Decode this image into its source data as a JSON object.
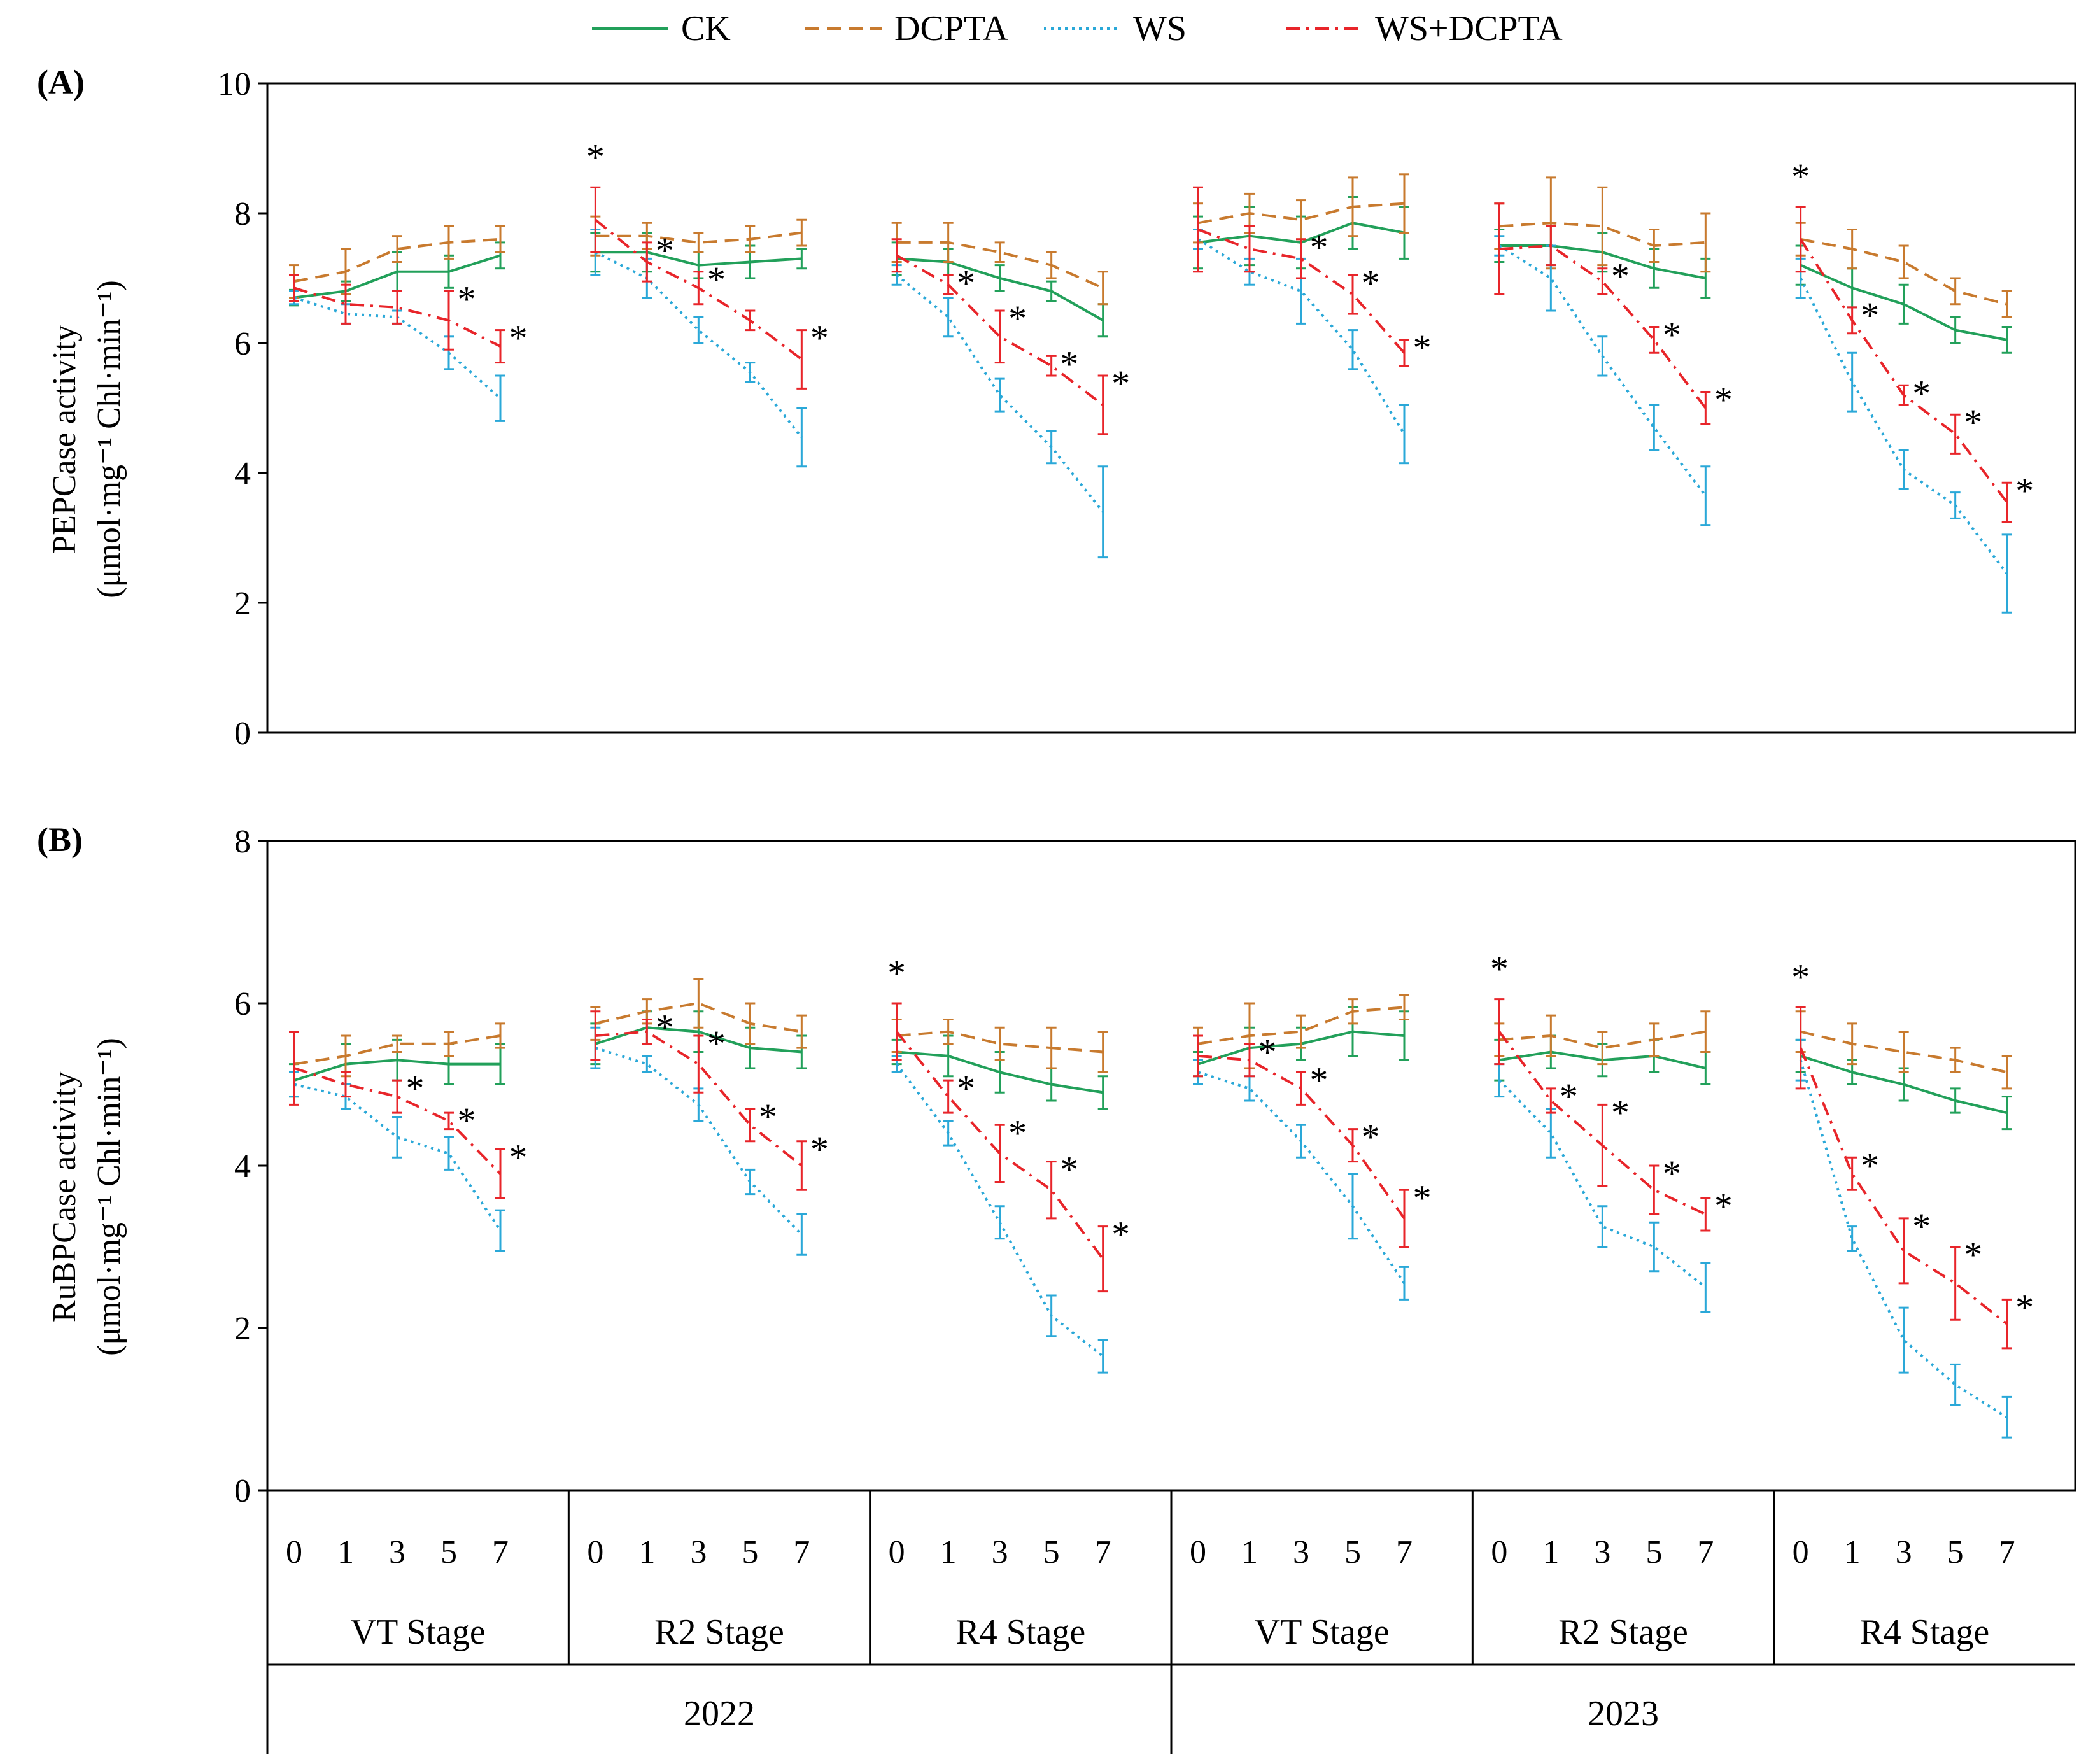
{
  "legend": [
    {
      "name": "CK",
      "color": "#22a05a",
      "dash": "solid"
    },
    {
      "name": "DCPTA",
      "color": "#c87a2e",
      "dash": "dashed"
    },
    {
      "name": "WS",
      "color": "#2aa8d8",
      "dash": "dotted"
    },
    {
      "name": "WS+DCPTA",
      "color": "#e8252a",
      "dash": "dashdot"
    }
  ],
  "x_axis": {
    "days": [
      "0",
      "1",
      "3",
      "5",
      "7"
    ],
    "stages": [
      "VT Stage",
      "R2 Stage",
      "R4 Stage",
      "VT Stage",
      "R2 Stage",
      "R4 Stage"
    ],
    "years": [
      "2022",
      "2023"
    ]
  },
  "chart_data": [
    {
      "type": "line",
      "panel": "(A)",
      "ylabel": "PEPCase activity",
      "yunit": "(μmol·mg⁻¹ Chl·min⁻¹)",
      "ylim": [
        0,
        10
      ],
      "yticks": [
        0,
        2,
        4,
        6,
        8,
        10
      ],
      "groups": [
        {
          "stage": "VT Stage",
          "year": "2022",
          "CK": [
            6.7,
            6.8,
            7.1,
            7.1,
            7.35
          ],
          "CK_err": [
            0.12,
            0.15,
            0.3,
            0.25,
            0.2
          ],
          "DCPTA": [
            6.95,
            7.1,
            7.45,
            7.55,
            7.6
          ],
          "DCPTA_err": [
            0.25,
            0.35,
            0.2,
            0.25,
            0.2
          ],
          "WS": [
            6.7,
            6.45,
            6.4,
            5.85,
            5.15
          ],
          "WS_err": [
            0.1,
            0.15,
            0.1,
            0.25,
            0.35
          ],
          "WS+DCPTA": [
            6.85,
            6.6,
            6.55,
            6.35,
            5.95
          ],
          "WS+DCPTA_err": [
            0.2,
            0.3,
            0.25,
            0.45,
            0.25
          ],
          "sig": [
            "",
            "",
            "",
            "*",
            "*"
          ]
        },
        {
          "stage": "R2 Stage",
          "year": "2022",
          "CK": [
            7.4,
            7.4,
            7.2,
            7.25,
            7.3
          ],
          "CK_err": [
            0.3,
            0.3,
            0.2,
            0.25,
            0.15
          ],
          "DCPTA": [
            7.65,
            7.65,
            7.55,
            7.6,
            7.7
          ],
          "DCPTA_err": [
            0.3,
            0.2,
            0.15,
            0.2,
            0.2
          ],
          "WS": [
            7.4,
            7.0,
            6.2,
            5.55,
            4.55
          ],
          "WS_err": [
            0.35,
            0.3,
            0.2,
            0.15,
            0.45
          ],
          "WS+DCPTA": [
            7.9,
            7.25,
            6.85,
            6.35,
            5.75
          ],
          "WS+DCPTA_err": [
            0.5,
            0.3,
            0.25,
            0.15,
            0.45
          ],
          "sig": [
            "*",
            "*",
            "*",
            "",
            "*"
          ]
        },
        {
          "stage": "R4 Stage",
          "year": "2022",
          "CK": [
            7.3,
            7.25,
            7.0,
            6.8,
            6.35
          ],
          "CK_err": [
            0.25,
            0.2,
            0.2,
            0.15,
            0.25
          ],
          "DCPTA": [
            7.55,
            7.55,
            7.4,
            7.2,
            6.85
          ],
          "DCPTA_err": [
            0.3,
            0.3,
            0.15,
            0.2,
            0.25
          ],
          "WS": [
            7.05,
            6.4,
            5.2,
            4.4,
            3.4
          ],
          "WS_err": [
            0.15,
            0.3,
            0.25,
            0.25,
            0.7
          ],
          "WS+DCPTA": [
            7.35,
            6.9,
            6.1,
            5.65,
            5.05
          ],
          "WS+DCPTA_err": [
            0.25,
            0.15,
            0.4,
            0.15,
            0.45
          ],
          "sig": [
            "",
            "*",
            "*",
            "*",
            "*"
          ]
        },
        {
          "stage": "VT Stage",
          "year": "2023",
          "CK": [
            7.55,
            7.65,
            7.55,
            7.85,
            7.7
          ],
          "CK_err": [
            0.4,
            0.45,
            0.4,
            0.4,
            0.4
          ],
          "DCPTA": [
            7.85,
            8.0,
            7.9,
            8.1,
            8.15
          ],
          "DCPTA_err": [
            0.3,
            0.3,
            0.3,
            0.45,
            0.45
          ],
          "WS": [
            7.6,
            7.1,
            6.8,
            5.9,
            4.6
          ],
          "WS_err": [
            0.15,
            0.2,
            0.5,
            0.3,
            0.45
          ],
          "WS+DCPTA": [
            7.75,
            7.45,
            7.3,
            6.75,
            5.85
          ],
          "WS+DCPTA_err": [
            0.65,
            0.35,
            0.3,
            0.3,
            0.2
          ],
          "sig": [
            "",
            "",
            "*",
            "*",
            "*"
          ]
        },
        {
          "stage": "R2 Stage",
          "year": "2023",
          "CK": [
            7.5,
            7.5,
            7.4,
            7.15,
            7.0
          ],
          "CK_err": [
            0.25,
            0.3,
            0.3,
            0.3,
            0.3
          ],
          "DCPTA": [
            7.8,
            7.85,
            7.8,
            7.5,
            7.55
          ],
          "DCPTA_err": [
            0.35,
            0.7,
            0.6,
            0.25,
            0.45
          ],
          "WS": [
            7.5,
            7.0,
            5.8,
            4.7,
            3.65
          ],
          "WS_err": [
            0.15,
            0.5,
            0.3,
            0.35,
            0.45
          ],
          "WS+DCPTA": [
            7.45,
            7.5,
            6.95,
            6.05,
            5.0
          ],
          "WS+DCPTA_err": [
            0.7,
            0.3,
            0.2,
            0.2,
            0.25
          ],
          "sig": [
            "",
            "",
            "*",
            "*",
            "*"
          ]
        },
        {
          "stage": "R4 Stage",
          "year": "2023",
          "CK": [
            7.2,
            6.85,
            6.6,
            6.2,
            6.05
          ],
          "CK_err": [
            0.3,
            0.3,
            0.3,
            0.2,
            0.2
          ],
          "DCPTA": [
            7.6,
            7.45,
            7.25,
            6.8,
            6.6
          ],
          "DCPTA_err": [
            0.25,
            0.3,
            0.25,
            0.2,
            0.2
          ],
          "WS": [
            7.0,
            5.4,
            4.05,
            3.5,
            2.45
          ],
          "WS_err": [
            0.3,
            0.45,
            0.3,
            0.2,
            0.6
          ],
          "WS+DCPTA": [
            7.6,
            6.35,
            5.2,
            4.6,
            3.55
          ],
          "WS+DCPTA_err": [
            0.5,
            0.2,
            0.15,
            0.3,
            0.3
          ],
          "sig": [
            "*",
            "*",
            "*",
            "*",
            "*"
          ]
        }
      ]
    },
    {
      "type": "line",
      "panel": "(B)",
      "ylabel": "RuBPCase activity",
      "yunit": "(μmol·mg⁻¹ Chl·min⁻¹)",
      "ylim": [
        0,
        8
      ],
      "yticks": [
        0,
        2,
        4,
        6,
        8
      ],
      "groups": [
        {
          "stage": "VT Stage",
          "year": "2022",
          "CK": [
            5.05,
            5.25,
            5.3,
            5.25,
            5.25
          ],
          "CK_err": [
            0.2,
            0.25,
            0.25,
            0.25,
            0.25
          ],
          "DCPTA": [
            5.25,
            5.35,
            5.5,
            5.5,
            5.6
          ],
          "DCPTA_err": [
            0.4,
            0.25,
            0.1,
            0.15,
            0.15
          ],
          "WS": [
            5.0,
            4.85,
            4.35,
            4.15,
            3.2
          ],
          "WS_err": [
            0.15,
            0.15,
            0.25,
            0.2,
            0.25
          ],
          "WS+DCPTA": [
            5.2,
            5.0,
            4.85,
            4.55,
            3.9
          ],
          "WS+DCPTA_err": [
            0.45,
            0.15,
            0.2,
            0.1,
            0.3
          ],
          "sig": [
            "",
            "",
            "*",
            "*",
            "*"
          ]
        },
        {
          "stage": "R2 Stage",
          "year": "2022",
          "CK": [
            5.5,
            5.7,
            5.65,
            5.45,
            5.4
          ],
          "CK_err": [
            0.25,
            0.2,
            0.25,
            0.25,
            0.2
          ],
          "DCPTA": [
            5.75,
            5.9,
            6.0,
            5.75,
            5.65
          ],
          "DCPTA_err": [
            0.2,
            0.15,
            0.3,
            0.25,
            0.2
          ],
          "WS": [
            5.45,
            5.25,
            4.75,
            3.8,
            3.15
          ],
          "WS_err": [
            0.25,
            0.1,
            0.2,
            0.15,
            0.25
          ],
          "WS+DCPTA": [
            5.6,
            5.65,
            5.25,
            4.5,
            4.0
          ],
          "WS+DCPTA_err": [
            0.3,
            0.15,
            0.35,
            0.2,
            0.3
          ],
          "sig": [
            "",
            "*",
            "*",
            "*",
            "*"
          ]
        },
        {
          "stage": "R4 Stage",
          "year": "2022",
          "CK": [
            5.4,
            5.35,
            5.15,
            5.0,
            4.9
          ],
          "CK_err": [
            0.15,
            0.25,
            0.25,
            0.2,
            0.2
          ],
          "DCPTA": [
            5.6,
            5.65,
            5.5,
            5.45,
            5.4
          ],
          "DCPTA_err": [
            0.2,
            0.15,
            0.2,
            0.25,
            0.25
          ],
          "WS": [
            5.25,
            4.4,
            3.3,
            2.15,
            1.65
          ],
          "WS_err": [
            0.1,
            0.15,
            0.2,
            0.25,
            0.2
          ],
          "WS+DCPTA": [
            5.65,
            4.85,
            4.15,
            3.7,
            2.85
          ],
          "WS+DCPTA_err": [
            0.35,
            0.2,
            0.35,
            0.35,
            0.4
          ],
          "sig": [
            "*",
            "*",
            "*",
            "*",
            "*"
          ]
        },
        {
          "stage": "VT Stage",
          "year": "2023",
          "CK": [
            5.25,
            5.45,
            5.5,
            5.65,
            5.6
          ],
          "CK_err": [
            0.15,
            0.25,
            0.2,
            0.3,
            0.3
          ],
          "DCPTA": [
            5.5,
            5.6,
            5.65,
            5.9,
            5.95
          ],
          "DCPTA_err": [
            0.2,
            0.4,
            0.2,
            0.15,
            0.15
          ],
          "WS": [
            5.15,
            4.95,
            4.3,
            3.5,
            2.55
          ],
          "WS_err": [
            0.15,
            0.15,
            0.2,
            0.4,
            0.2
          ],
          "WS+DCPTA": [
            5.35,
            5.3,
            4.95,
            4.25,
            3.35
          ],
          "WS+DCPTA_err": [
            0.25,
            0.2,
            0.2,
            0.2,
            0.35
          ],
          "sig": [
            "",
            "*",
            "*",
            "*",
            "*"
          ]
        },
        {
          "stage": "R2 Stage",
          "year": "2023",
          "CK": [
            5.3,
            5.4,
            5.3,
            5.35,
            5.2
          ],
          "CK_err": [
            0.25,
            0.2,
            0.2,
            0.2,
            0.2
          ],
          "DCPTA": [
            5.55,
            5.6,
            5.45,
            5.55,
            5.65
          ],
          "DCPTA_err": [
            0.2,
            0.25,
            0.2,
            0.2,
            0.25
          ],
          "WS": [
            5.05,
            4.4,
            3.25,
            3.0,
            2.5
          ],
          "WS_err": [
            0.2,
            0.3,
            0.25,
            0.3,
            0.3
          ],
          "WS+DCPTA": [
            5.65,
            4.8,
            4.25,
            3.7,
            3.4
          ],
          "WS+DCPTA_err": [
            0.4,
            0.15,
            0.5,
            0.3,
            0.2
          ],
          "sig": [
            "*",
            "*",
            "*",
            "*",
            "*"
          ]
        },
        {
          "stage": "R4 Stage",
          "year": "2023",
          "CK": [
            5.35,
            5.15,
            5.0,
            4.8,
            4.65
          ],
          "CK_err": [
            0.2,
            0.15,
            0.2,
            0.15,
            0.2
          ],
          "DCPTA": [
            5.65,
            5.5,
            5.4,
            5.3,
            5.15
          ],
          "DCPTA_err": [
            0.25,
            0.25,
            0.25,
            0.15,
            0.2
          ],
          "WS": [
            5.3,
            3.1,
            1.85,
            1.3,
            0.9
          ],
          "WS_err": [
            0.25,
            0.15,
            0.4,
            0.25,
            0.25
          ],
          "WS+DCPTA": [
            5.45,
            3.9,
            2.95,
            2.55,
            2.05
          ],
          "WS+DCPTA_err": [
            0.5,
            0.2,
            0.4,
            0.45,
            0.3
          ],
          "sig": [
            "*",
            "*",
            "*",
            "*",
            "*"
          ]
        }
      ]
    }
  ]
}
